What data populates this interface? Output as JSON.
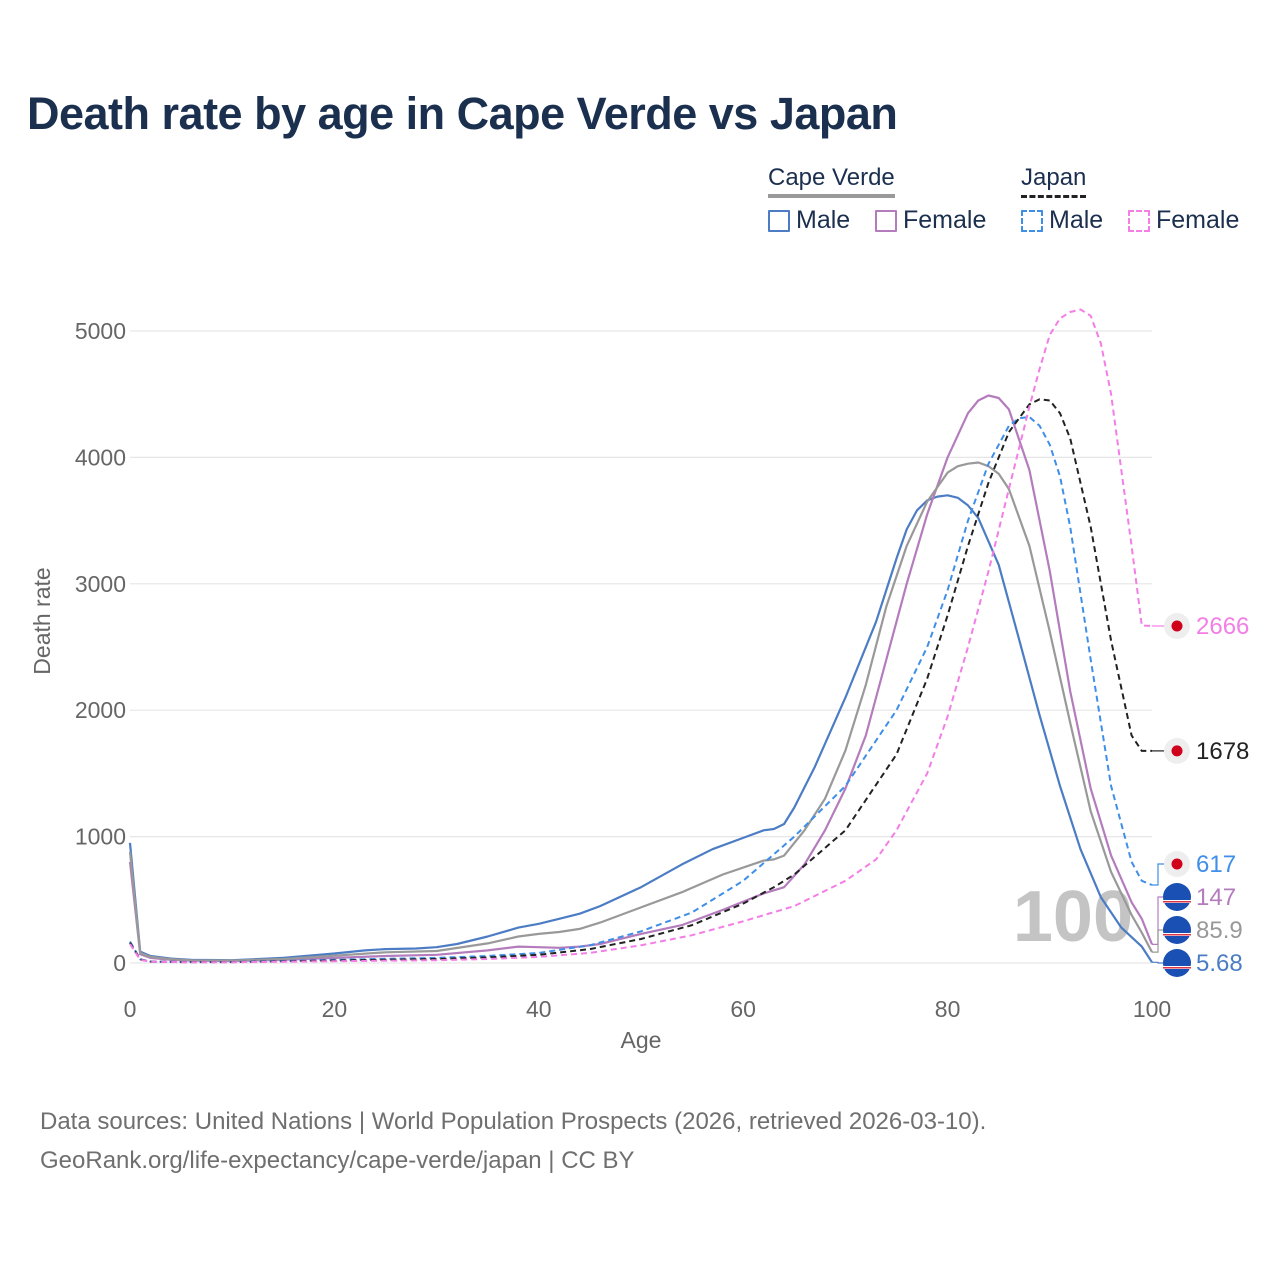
{
  "title": "Death rate by age in Cape Verde vs Japan",
  "legend": {
    "groups": [
      {
        "name": "Cape Verde",
        "line_color": "#999999",
        "dashed": false,
        "items": [
          {
            "label": "Male",
            "color": "#4c7dc4"
          },
          {
            "label": "Female",
            "color": "#b47cbd"
          }
        ]
      },
      {
        "name": "Japan",
        "line_color": "#222222",
        "dashed": true,
        "items": [
          {
            "label": "Male",
            "color": "#3f8ee8"
          },
          {
            "label": "Female",
            "color": "#f27ee6"
          }
        ]
      }
    ]
  },
  "footer": {
    "line1": "Data sources: United Nations | World Population Prospects (2026, retrieved 2026-03-10).",
    "line2": "GeoRank.org/life-expectancy/cape-verde/japan | CC BY"
  },
  "chart_data": {
    "type": "line",
    "xlabel": "Age",
    "ylabel": "Death rate",
    "xlim": [
      0,
      100
    ],
    "ylim": [
      0,
      5000
    ],
    "xticks": [
      0,
      20,
      40,
      60,
      80,
      100
    ],
    "yticks": [
      0,
      1000,
      2000,
      3000,
      4000,
      5000
    ],
    "watermark": "100",
    "series": [
      {
        "name": "Cape Verde Male",
        "color": "#4c7dc4",
        "dashed": false,
        "end_label": "5.68",
        "flag": "cape-verde",
        "x": [
          0,
          1,
          2,
          4,
          6,
          10,
          15,
          20,
          23,
          25,
          28,
          30,
          32,
          35,
          38,
          40,
          42,
          44,
          46,
          50,
          54,
          57,
          60,
          62,
          63,
          64,
          65,
          67,
          70,
          73,
          75,
          76,
          77,
          78,
          79,
          80,
          81,
          82,
          83,
          85,
          87,
          89,
          91,
          93,
          95,
          97,
          99,
          100
        ],
        "y": [
          950,
          90,
          55,
          35,
          25,
          22,
          40,
          75,
          100,
          110,
          115,
          125,
          150,
          210,
          280,
          310,
          350,
          390,
          450,
          600,
          780,
          900,
          990,
          1050,
          1060,
          1100,
          1230,
          1550,
          2100,
          2700,
          3200,
          3430,
          3580,
          3660,
          3690,
          3700,
          3680,
          3620,
          3520,
          3150,
          2560,
          1960,
          1400,
          900,
          520,
          280,
          130,
          5.68
        ]
      },
      {
        "name": "Cape Verde Female",
        "color": "#b47cbd",
        "dashed": false,
        "end_label": "147",
        "flag": "cape-verde",
        "x": [
          0,
          1,
          2,
          4,
          6,
          10,
          15,
          20,
          25,
          30,
          35,
          38,
          40,
          42,
          44,
          46,
          50,
          54,
          58,
          62,
          64,
          66,
          68,
          70,
          72,
          74,
          76,
          78,
          80,
          82,
          83,
          84,
          85,
          86,
          88,
          90,
          92,
          94,
          96,
          98,
          99,
          100
        ],
        "y": [
          800,
          70,
          40,
          25,
          18,
          16,
          25,
          40,
          55,
          65,
          100,
          130,
          125,
          120,
          130,
          150,
          230,
          300,
          420,
          550,
          600,
          780,
          1050,
          1380,
          1800,
          2400,
          3000,
          3550,
          4000,
          4350,
          4450,
          4490,
          4470,
          4380,
          3900,
          3100,
          2150,
          1380,
          850,
          480,
          350,
          147
        ]
      },
      {
        "name": "Cape Verde Both",
        "color": "#999999",
        "dashed": false,
        "end_label": "85.9",
        "flag": "cape-verde",
        "x": [
          0,
          1,
          2,
          4,
          6,
          10,
          15,
          20,
          25,
          30,
          35,
          38,
          40,
          42,
          44,
          46,
          50,
          54,
          58,
          62,
          63,
          64,
          66,
          68,
          70,
          72,
          74,
          76,
          78,
          80,
          81,
          82,
          83,
          84,
          85,
          86,
          88,
          90,
          92,
          94,
          96,
          98,
          99,
          100
        ],
        "y": [
          880,
          80,
          48,
          30,
          21,
          19,
          32,
          58,
          85,
          95,
          155,
          210,
          230,
          245,
          270,
          320,
          440,
          560,
          700,
          810,
          820,
          850,
          1050,
          1300,
          1680,
          2200,
          2820,
          3300,
          3650,
          3880,
          3930,
          3950,
          3960,
          3930,
          3870,
          3750,
          3300,
          2620,
          1900,
          1200,
          720,
          380,
          240,
          85.9
        ]
      },
      {
        "name": "Japan Male",
        "color": "#3f8ee8",
        "dashed": true,
        "end_label": "617",
        "flag": "japan",
        "x": [
          0,
          1,
          2,
          5,
          10,
          20,
          30,
          35,
          40,
          45,
          50,
          55,
          60,
          65,
          70,
          75,
          78,
          80,
          82,
          84,
          86,
          87,
          88,
          89,
          90,
          91,
          92,
          94,
          96,
          98,
          99,
          100
        ],
        "y": [
          170,
          30,
          12,
          8,
          8,
          25,
          40,
          55,
          80,
          140,
          250,
          400,
          650,
          1000,
          1400,
          2000,
          2500,
          2950,
          3500,
          3950,
          4250,
          4310,
          4320,
          4250,
          4100,
          3850,
          3450,
          2400,
          1400,
          800,
          650,
          617
        ]
      },
      {
        "name": "Japan Both",
        "color": "#222222",
        "dashed": true,
        "end_label": "1678",
        "flag": "japan",
        "x": [
          0,
          1,
          2,
          5,
          10,
          20,
          30,
          35,
          40,
          45,
          50,
          55,
          60,
          63,
          65,
          70,
          75,
          78,
          80,
          82,
          84,
          86,
          88,
          89,
          90,
          91,
          92,
          94,
          96,
          98,
          99,
          100
        ],
        "y": [
          160,
          28,
          11,
          7,
          7,
          20,
          32,
          44,
          65,
          110,
          190,
          300,
          470,
          600,
          700,
          1050,
          1650,
          2250,
          2750,
          3300,
          3800,
          4200,
          4420,
          4460,
          4450,
          4350,
          4150,
          3450,
          2550,
          1800,
          1678,
          1678
        ]
      },
      {
        "name": "Japan Female",
        "color": "#f27ee6",
        "dashed": true,
        "end_label": "2666",
        "flag": "japan",
        "x": [
          0,
          1,
          2,
          5,
          10,
          20,
          30,
          35,
          40,
          45,
          50,
          55,
          60,
          65,
          70,
          73,
          75,
          78,
          80,
          82,
          84,
          86,
          88,
          89,
          90,
          91,
          92,
          93,
          94,
          95,
          96,
          97,
          98,
          99,
          100
        ],
        "y": [
          150,
          25,
          10,
          6,
          6,
          14,
          22,
          32,
          48,
          80,
          140,
          220,
          330,
          450,
          650,
          820,
          1050,
          1500,
          1950,
          2500,
          3100,
          3750,
          4400,
          4700,
          4970,
          5100,
          5150,
          5170,
          5120,
          4900,
          4500,
          3900,
          3300,
          2670,
          2666
        ]
      }
    ]
  }
}
